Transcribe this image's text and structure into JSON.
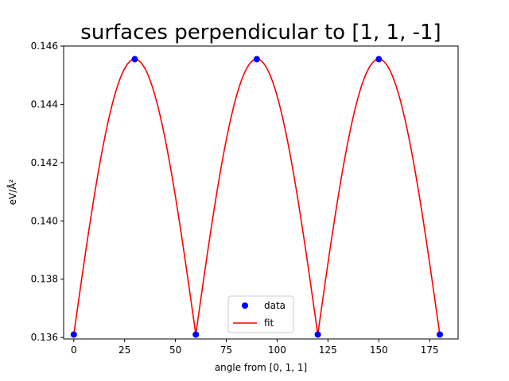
{
  "chart_data": {
    "type": "line",
    "title": "surfaces perpendicular to [1, 1, -1]",
    "xlabel": "angle from [0, 1, 1]",
    "ylabel": "eV/Å²",
    "xlim": [
      -5,
      189
    ],
    "ylim": [
      0.13595,
      0.146
    ],
    "xticks": [
      0,
      25,
      50,
      75,
      100,
      125,
      150,
      175
    ],
    "yticks": [
      0.136,
      0.138,
      0.14,
      0.142,
      0.144,
      0.146
    ],
    "ytick_labels": [
      "0.136",
      "0.138",
      "0.140",
      "0.142",
      "0.144",
      "0.146"
    ],
    "grid": false,
    "legend_position": "lower center",
    "series": [
      {
        "name": "data",
        "kind": "scatter",
        "color": "#0000ff",
        "x": [
          0,
          30,
          60,
          90,
          120,
          150,
          180
        ],
        "y": [
          0.1361,
          0.14555,
          0.1361,
          0.14555,
          0.1361,
          0.14555,
          0.1361
        ]
      },
      {
        "name": "fit",
        "kind": "line",
        "color": "#ff0000",
        "period": 60,
        "min": 0.1361,
        "max": 0.14555
      }
    ]
  }
}
